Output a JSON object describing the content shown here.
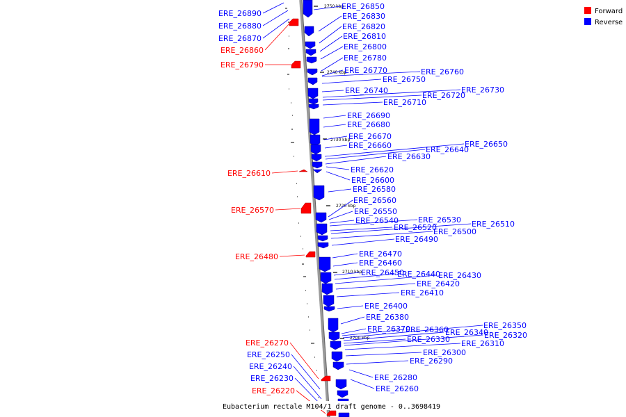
{
  "legend": [
    {
      "label": "Forward",
      "color": "#ff0000"
    },
    {
      "label": "Reverse",
      "color": "#0000ff"
    }
  ],
  "footer": "Eubacterium rectale M104/1 draft genome - 0..3698419",
  "ticks": [
    "2750 kbp",
    "2740 kbp",
    "2730 kbp",
    "2720 kbp",
    "2710 kbp",
    "2700 kbp"
  ],
  "reverse_genes": [
    "ERE_26890",
    "ERE_26880",
    "ERE_26870",
    "ERE_26850",
    "ERE_26830",
    "ERE_26820",
    "ERE_26810",
    "ERE_26800",
    "ERE_26780",
    "ERE_26770",
    "ERE_26760",
    "ERE_26750",
    "ERE_26740",
    "ERE_26730",
    "ERE_26720",
    "ERE_26710",
    "ERE_26690",
    "ERE_26680",
    "ERE_26670",
    "ERE_26660",
    "ERE_26650",
    "ERE_26640",
    "ERE_26630",
    "ERE_26620",
    "ERE_26600",
    "ERE_26580",
    "ERE_26560",
    "ERE_26550",
    "ERE_26540",
    "ERE_26530",
    "ERE_26520",
    "ERE_26510",
    "ERE_26500",
    "ERE_26490",
    "ERE_26470",
    "ERE_26460",
    "ERE_26450",
    "ERE_26440",
    "ERE_26430",
    "ERE_26420",
    "ERE_26410",
    "ERE_26400",
    "ERE_26380",
    "ERE_26370",
    "ERE_26360",
    "ERE_26350",
    "ERE_26340",
    "ERE_26330",
    "ERE_26320",
    "ERE_26310",
    "ERE_26300",
    "ERE_26290",
    "ERE_26280",
    "ERE_26260",
    "ERE_26250",
    "ERE_26240",
    "ERE_26230"
  ],
  "forward_genes": [
    "ERE_26860",
    "ERE_26790",
    "ERE_26610",
    "ERE_26570",
    "ERE_26480",
    "ERE_26270",
    "ERE_26220"
  ]
}
